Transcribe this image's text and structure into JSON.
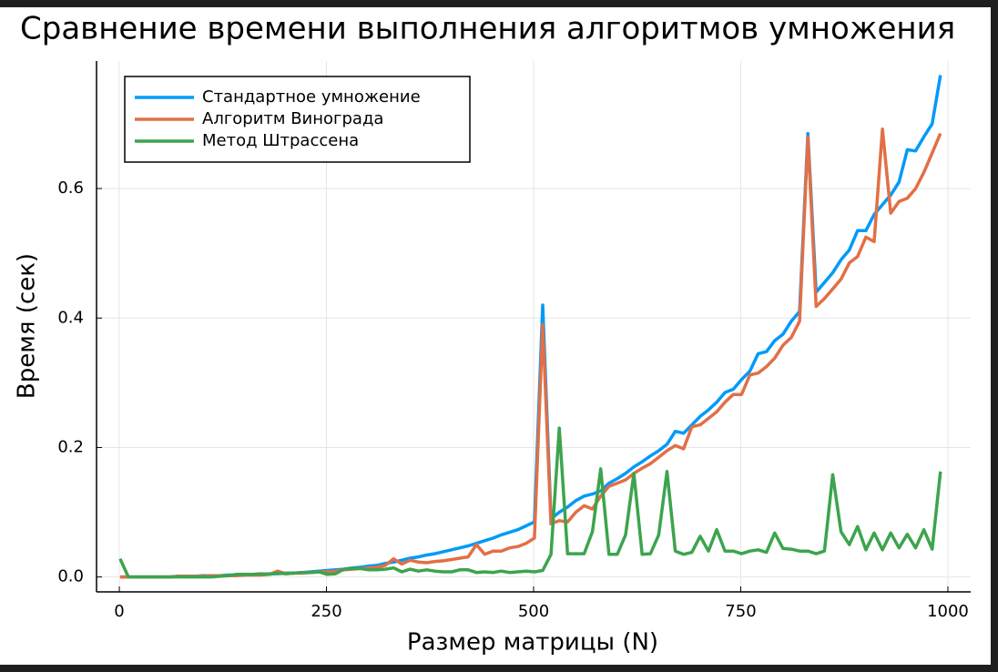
{
  "chart_data": {
    "type": "line",
    "title": "Сравнение времени выполнения алгоритмов умножения",
    "x_label": "Размер матрицы (N)",
    "y_label": "Время (сек)",
    "x": [
      1,
      11,
      21,
      31,
      41,
      51,
      61,
      71,
      81,
      91,
      101,
      111,
      121,
      131,
      141,
      151,
      161,
      171,
      181,
      191,
      201,
      211,
      221,
      231,
      241,
      251,
      261,
      271,
      281,
      291,
      301,
      311,
      321,
      331,
      341,
      351,
      361,
      371,
      381,
      391,
      401,
      411,
      421,
      431,
      441,
      451,
      461,
      471,
      481,
      491,
      501,
      511,
      521,
      531,
      541,
      551,
      561,
      571,
      581,
      591,
      601,
      611,
      621,
      631,
      641,
      651,
      661,
      671,
      681,
      691,
      701,
      711,
      721,
      731,
      741,
      751,
      761,
      771,
      781,
      791,
      801,
      811,
      821,
      831,
      841,
      851,
      861,
      871,
      881,
      891,
      901,
      911,
      921,
      931,
      941,
      951,
      961,
      971,
      981,
      991
    ],
    "series": [
      {
        "name": "Стандартное умножение",
        "color": "#009af9",
        "values": [
          0,
          0,
          0,
          0,
          0,
          0,
          0,
          0.001,
          0.001,
          0.001,
          0.002,
          0.002,
          0.002,
          0.003,
          0.003,
          0.003,
          0.004,
          0.004,
          0.005,
          0.005,
          0.006,
          0.006,
          0.007,
          0.008,
          0.009,
          0.01,
          0.011,
          0.012,
          0.014,
          0.015,
          0.017,
          0.018,
          0.021,
          0.023,
          0.026,
          0.029,
          0.031,
          0.034,
          0.036,
          0.039,
          0.042,
          0.045,
          0.048,
          0.052,
          0.056,
          0.06,
          0.065,
          0.069,
          0.073,
          0.079,
          0.085,
          0.42,
          0.09,
          0.1,
          0.108,
          0.118,
          0.125,
          0.128,
          0.133,
          0.145,
          0.152,
          0.16,
          0.17,
          0.178,
          0.187,
          0.195,
          0.205,
          0.225,
          0.222,
          0.235,
          0.248,
          0.258,
          0.27,
          0.285,
          0.29,
          0.305,
          0.318,
          0.345,
          0.348,
          0.365,
          0.375,
          0.395,
          0.41,
          0.685,
          0.44,
          0.455,
          0.47,
          0.49,
          0.505,
          0.535,
          0.535,
          0.56,
          0.575,
          0.59,
          0.61,
          0.66,
          0.658,
          0.68,
          0.7,
          0.775
        ]
      },
      {
        "name": "Алгоритм Винограда",
        "color": "#e26f46",
        "values": [
          0,
          0,
          0,
          0,
          0,
          0,
          0,
          0.001,
          0.001,
          0.001,
          0.001,
          0.002,
          0.002,
          0.002,
          0.002,
          0.003,
          0.003,
          0.003,
          0.004,
          0.009,
          0.005,
          0.006,
          0.006,
          0.007,
          0.008,
          0.008,
          0.009,
          0.011,
          0.012,
          0.013,
          0.014,
          0.015,
          0.018,
          0.028,
          0.02,
          0.026,
          0.023,
          0.022,
          0.024,
          0.025,
          0.027,
          0.029,
          0.031,
          0.05,
          0.035,
          0.04,
          0.04,
          0.045,
          0.047,
          0.052,
          0.06,
          0.39,
          0.082,
          0.087,
          0.085,
          0.1,
          0.11,
          0.105,
          0.125,
          0.14,
          0.145,
          0.15,
          0.16,
          0.168,
          0.175,
          0.185,
          0.195,
          0.203,
          0.198,
          0.232,
          0.235,
          0.245,
          0.255,
          0.27,
          0.282,
          0.282,
          0.312,
          0.315,
          0.325,
          0.338,
          0.358,
          0.37,
          0.395,
          0.68,
          0.418,
          0.43,
          0.445,
          0.46,
          0.485,
          0.495,
          0.525,
          0.518,
          0.692,
          0.562,
          0.58,
          0.585,
          0.6,
          0.625,
          0.655,
          0.685
        ]
      },
      {
        "name": "Метод Штрассена",
        "color": "#3da44d",
        "values": [
          0.028,
          0,
          0,
          0,
          0,
          0,
          0,
          0,
          0,
          0,
          0,
          0,
          0.001,
          0.002,
          0.004,
          0.004,
          0.004,
          0.005,
          0.004,
          0.006,
          0.005,
          0.006,
          0.007,
          0.007,
          0.008,
          0.004,
          0.005,
          0.012,
          0.013,
          0.013,
          0.011,
          0.011,
          0.012,
          0.014,
          0.008,
          0.012,
          0.009,
          0.011,
          0.009,
          0.008,
          0.008,
          0.011,
          0.011,
          0.007,
          0.008,
          0.007,
          0.009,
          0.007,
          0.008,
          0.009,
          0.008,
          0.01,
          0.035,
          0.23,
          0.036,
          0.036,
          0.036,
          0.07,
          0.167,
          0.035,
          0.035,
          0.065,
          0.16,
          0.035,
          0.036,
          0.065,
          0.163,
          0.04,
          0.035,
          0.038,
          0.063,
          0.04,
          0.073,
          0.04,
          0.04,
          0.036,
          0.04,
          0.042,
          0.038,
          0.068,
          0.044,
          0.043,
          0.04,
          0.04,
          0.036,
          0.04,
          0.158,
          0.07,
          0.05,
          0.078,
          0.042,
          0.068,
          0.042,
          0.068,
          0.045,
          0.066,
          0.045,
          0.073,
          0.043,
          0.163
        ]
      }
    ],
    "xlim": [
      -27.5,
      1027.5
    ],
    "ylim": [
      -0.023,
      0.797
    ],
    "xticks": [
      0,
      250,
      500,
      750,
      1000
    ],
    "yticks": [
      {
        "value": 0,
        "label": "0.0"
      },
      0.2,
      0.4,
      0.6
    ],
    "grid": true,
    "legend": "top-left"
  }
}
